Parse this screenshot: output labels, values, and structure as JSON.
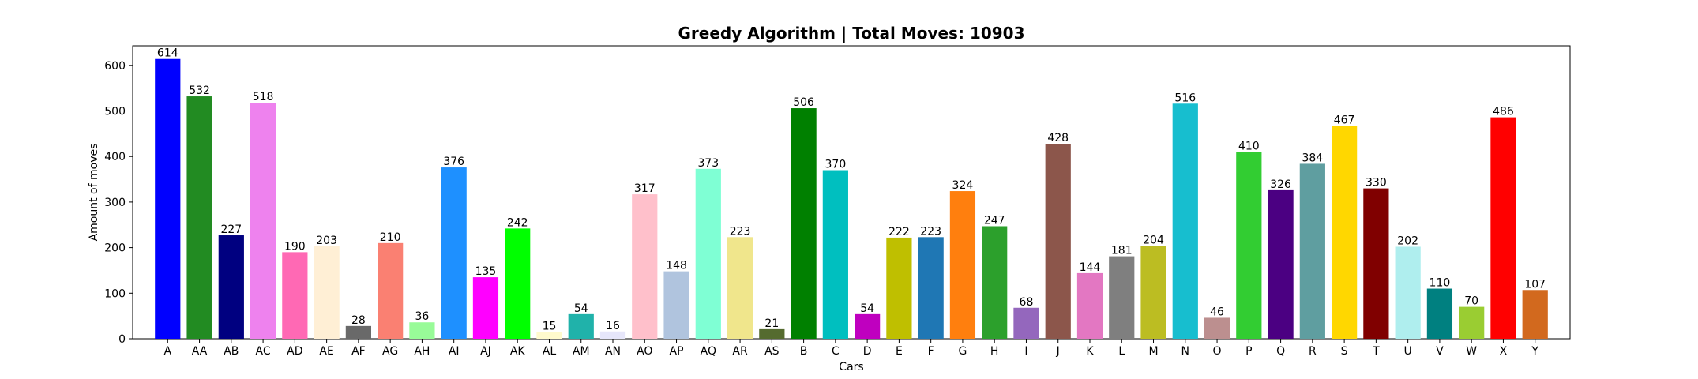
{
  "chart_data": {
    "type": "bar",
    "title": "Greedy Algorithm | Total Moves: 10903",
    "xlabel": "Cars",
    "ylabel": "Amount of moves",
    "ylim": [
      0,
      643
    ],
    "yticks": [
      0,
      100,
      200,
      300,
      400,
      500,
      600
    ],
    "grid": false,
    "legend": "none",
    "categories": [
      "A",
      "AA",
      "AB",
      "AC",
      "AD",
      "AE",
      "AF",
      "AG",
      "AH",
      "AI",
      "AJ",
      "AK",
      "AL",
      "AM",
      "AN",
      "AO",
      "AP",
      "AQ",
      "AR",
      "AS",
      "B",
      "C",
      "D",
      "E",
      "F",
      "G",
      "H",
      "I",
      "J",
      "K",
      "L",
      "M",
      "N",
      "O",
      "P",
      "Q",
      "R",
      "S",
      "T",
      "U",
      "V",
      "W",
      "X",
      "Y"
    ],
    "values": [
      614,
      532,
      227,
      518,
      190,
      203,
      28,
      210,
      36,
      376,
      135,
      242,
      15,
      54,
      16,
      317,
      148,
      373,
      223,
      21,
      506,
      370,
      54,
      222,
      223,
      324,
      247,
      68,
      428,
      144,
      181,
      204,
      516,
      46,
      410,
      326,
      384,
      467,
      330,
      202,
      110,
      70,
      486,
      107
    ],
    "colors": [
      "#0000ff",
      "#228b22",
      "#000080",
      "#ee82ee",
      "#ff69b4",
      "#ffefd5",
      "#696969",
      "#fa8072",
      "#98fb98",
      "#1e90ff",
      "#ff00ff",
      "#00ff00",
      "#fffacd",
      "#20b2aa",
      "#e6e6fa",
      "#ffc0cb",
      "#b0c4de",
      "#7fffd4",
      "#f0e68c",
      "#556b2f",
      "#008000",
      "#00bfbf",
      "#bf00bf",
      "#bfbf00",
      "#1f77b4",
      "#ff7f0e",
      "#2ca02c",
      "#9467bd",
      "#8c564b",
      "#e377c2",
      "#7f7f7f",
      "#bcbd22",
      "#17becf",
      "#bc8f8f",
      "#32cd32",
      "#4b0082",
      "#5f9ea0",
      "#ffd700",
      "#800000",
      "#afeeee",
      "#008080",
      "#9acd32",
      "#ff0000",
      "#d2691e"
    ]
  }
}
